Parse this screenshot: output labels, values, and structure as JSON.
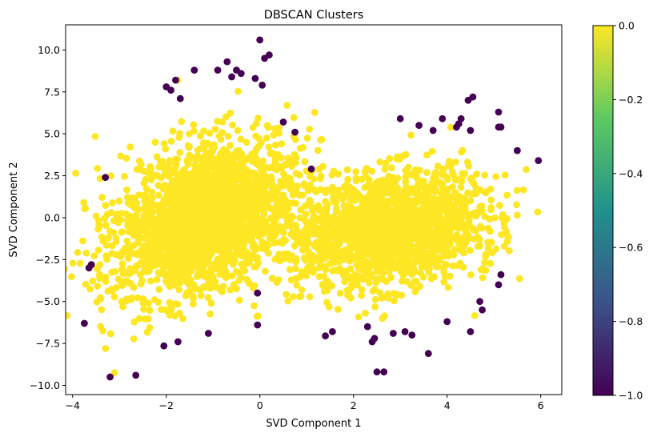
{
  "chart_data": {
    "type": "scatter",
    "title": "DBSCAN Clusters",
    "xlabel": "SVD Component 1",
    "ylabel": "SVD Component 2",
    "xlim": [
      -4.15,
      6.45
    ],
    "ylim": [
      -10.55,
      11.5
    ],
    "x_ticks": [
      -4,
      -2,
      0,
      2,
      4,
      6
    ],
    "x_tick_labels": [
      "−4",
      "−2",
      "0",
      "2",
      "4",
      "6"
    ],
    "y_ticks": [
      -10,
      -7.5,
      -5,
      -2.5,
      0,
      2.5,
      5,
      7.5,
      10
    ],
    "y_tick_labels": [
      "−10.0",
      "−7.5",
      "−5.0",
      "−2.5",
      "0.0",
      "2.5",
      "5.0",
      "7.5",
      "10.0"
    ],
    "colorbar": {
      "colormap": "viridis",
      "range": [
        -1.0,
        0.0
      ],
      "ticks": [
        0.0,
        -0.2,
        -0.4,
        -0.6,
        -0.8,
        -1.0
      ],
      "tick_labels": [
        "0.0",
        "−0.2",
        "−0.4",
        "−0.6",
        "−0.8",
        "−1.0"
      ],
      "colors": [
        "#fde725",
        "#5ec962",
        "#21918c",
        "#3b528b",
        "#440154"
      ]
    },
    "legend": "none",
    "grid": false,
    "series": [
      {
        "label": 0,
        "color": "#fde725",
        "clusters_approx": [
          {
            "center": [
              -1.2,
              0.0
            ],
            "spread": [
              0.9,
              2.3
            ],
            "count": 2200
          },
          {
            "center": [
              2.8,
              -0.7
            ],
            "spread": [
              1.0,
              1.7
            ],
            "count": 1700
          }
        ]
      },
      {
        "label": -1,
        "color": "#440154",
        "points": [
          [
            0.0,
            10.6
          ],
          [
            0.1,
            9.5
          ],
          [
            0.2,
            9.7
          ],
          [
            -0.7,
            9.3
          ],
          [
            -0.9,
            8.8
          ],
          [
            -0.5,
            8.8
          ],
          [
            -0.4,
            8.6
          ],
          [
            -0.6,
            8.4
          ],
          [
            -1.4,
            8.8
          ],
          [
            -1.8,
            8.2
          ],
          [
            -0.1,
            8.3
          ],
          [
            0.05,
            7.9
          ],
          [
            -2.0,
            7.8
          ],
          [
            -1.7,
            7.1
          ],
          [
            -1.9,
            7.6
          ],
          [
            0.5,
            5.7
          ],
          [
            0.75,
            5.1
          ],
          [
            1.1,
            2.9
          ],
          [
            -3.3,
            2.4
          ],
          [
            -3.6,
            -2.8
          ],
          [
            -3.65,
            -3.0
          ],
          [
            -3.75,
            -6.3
          ],
          [
            -3.2,
            -9.5
          ],
          [
            -2.65,
            -9.4
          ],
          [
            -2.05,
            -7.65
          ],
          [
            -1.75,
            -7.4
          ],
          [
            -1.1,
            -6.9
          ],
          [
            -0.05,
            -4.5
          ],
          [
            -0.05,
            -6.4
          ],
          [
            1.55,
            -6.8
          ],
          [
            1.4,
            -7.05
          ],
          [
            2.3,
            -6.5
          ],
          [
            2.45,
            -7.2
          ],
          [
            2.4,
            -7.4
          ],
          [
            2.5,
            -9.2
          ],
          [
            2.65,
            -9.2
          ],
          [
            2.85,
            -6.9
          ],
          [
            3.1,
            -6.8
          ],
          [
            3.25,
            -7.0
          ],
          [
            3.6,
            -8.1
          ],
          [
            4.0,
            -6.2
          ],
          [
            4.5,
            -6.8
          ],
          [
            4.7,
            -5.0
          ],
          [
            4.75,
            -5.5
          ],
          [
            5.1,
            -4.0
          ],
          [
            5.15,
            -3.4
          ],
          [
            3.0,
            5.9
          ],
          [
            3.4,
            5.5
          ],
          [
            3.7,
            5.2
          ],
          [
            3.9,
            5.9
          ],
          [
            4.2,
            5.4
          ],
          [
            4.3,
            5.9
          ],
          [
            4.25,
            5.6
          ],
          [
            4.5,
            5.2
          ],
          [
            4.45,
            7.0
          ],
          [
            4.55,
            7.2
          ],
          [
            5.1,
            6.3
          ],
          [
            5.1,
            5.4
          ],
          [
            5.15,
            5.4
          ],
          [
            5.5,
            4.0
          ],
          [
            5.95,
            3.4
          ]
        ]
      }
    ]
  }
}
